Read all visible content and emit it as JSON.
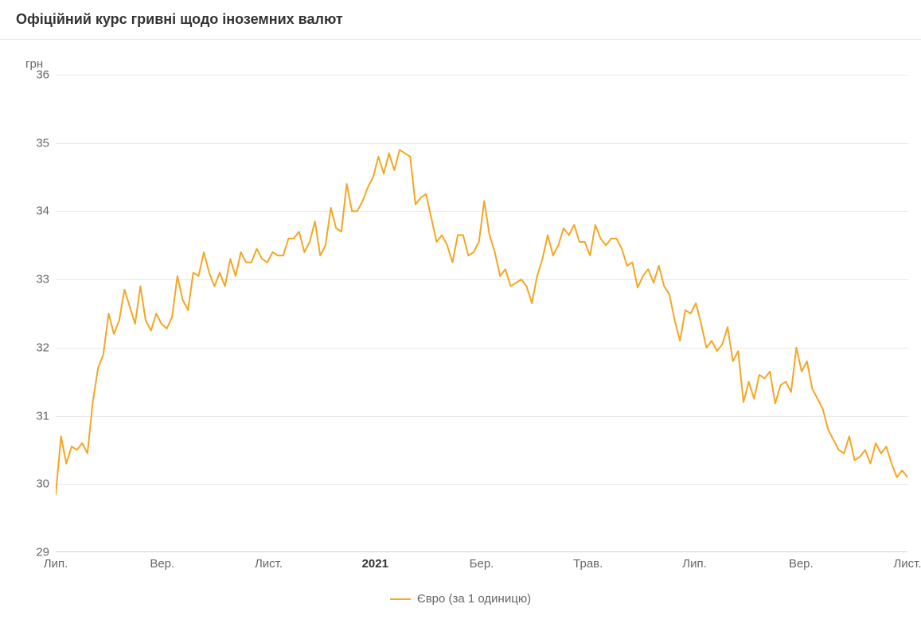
{
  "title": "Офіційний курс гривні щодо іноземних валют",
  "chart": {
    "type": "line",
    "y_unit": "грн",
    "ylim": [
      29,
      36
    ],
    "ytick_step": 1,
    "yticks_labels": [
      "29",
      "30",
      "31",
      "32",
      "33",
      "34",
      "35",
      "36"
    ],
    "xticks": [
      {
        "pos": 0.0,
        "label": "Лип.",
        "bold": false
      },
      {
        "pos": 0.125,
        "label": "Вер.",
        "bold": false
      },
      {
        "pos": 0.25,
        "label": "Лист.",
        "bold": false
      },
      {
        "pos": 0.375,
        "label": "2021",
        "bold": true
      },
      {
        "pos": 0.5,
        "label": "Бер.",
        "bold": false
      },
      {
        "pos": 0.625,
        "label": "Трав.",
        "bold": false
      },
      {
        "pos": 0.75,
        "label": "Лип.",
        "bold": false
      },
      {
        "pos": 0.875,
        "label": "Вер.",
        "bold": false
      },
      {
        "pos": 1.0,
        "label": "Лист.",
        "bold": false
      }
    ],
    "legend_label": "Євро (за 1 одиницю)",
    "line_color": "#f5a623",
    "line_width": 2,
    "background_color": "#ffffff",
    "grid_color": "#e8e8e8",
    "axis_text_color": "#666666",
    "title_color": "#333333",
    "title_fontsize": 18,
    "label_fontsize": 15,
    "values": [
      29.85,
      30.7,
      30.3,
      30.55,
      30.5,
      30.6,
      30.45,
      31.2,
      31.7,
      31.9,
      32.5,
      32.2,
      32.4,
      32.85,
      32.6,
      32.35,
      32.9,
      32.4,
      32.25,
      32.5,
      32.35,
      32.28,
      32.45,
      33.05,
      32.7,
      32.55,
      33.1,
      33.05,
      33.4,
      33.1,
      32.9,
      33.1,
      32.9,
      33.3,
      33.05,
      33.4,
      33.25,
      33.25,
      33.45,
      33.3,
      33.25,
      33.4,
      33.35,
      33.35,
      33.6,
      33.6,
      33.7,
      33.4,
      33.55,
      33.85,
      33.35,
      33.5,
      34.05,
      33.75,
      33.7,
      34.4,
      34.0,
      34.0,
      34.15,
      34.35,
      34.5,
      34.8,
      34.55,
      34.85,
      34.6,
      34.9,
      34.85,
      34.8,
      34.1,
      34.2,
      34.25,
      33.9,
      33.55,
      33.65,
      33.5,
      33.25,
      33.65,
      33.65,
      33.35,
      33.4,
      33.55,
      34.15,
      33.65,
      33.4,
      33.05,
      33.15,
      32.9,
      32.95,
      33.0,
      32.9,
      32.65,
      33.05,
      33.3,
      33.65,
      33.35,
      33.5,
      33.75,
      33.65,
      33.8,
      33.55,
      33.55,
      33.35,
      33.8,
      33.6,
      33.5,
      33.6,
      33.6,
      33.45,
      33.2,
      33.25,
      32.88,
      33.05,
      33.15,
      32.95,
      33.2,
      32.9,
      32.78,
      32.4,
      32.1,
      32.55,
      32.5,
      32.65,
      32.35,
      32.0,
      32.1,
      31.95,
      32.05,
      32.3,
      31.8,
      31.95,
      31.2,
      31.5,
      31.25,
      31.6,
      31.55,
      31.65,
      31.18,
      31.45,
      31.5,
      31.35,
      32.0,
      31.65,
      31.8,
      31.4,
      31.25,
      31.1,
      30.8,
      30.65,
      30.5,
      30.45,
      30.7,
      30.35,
      30.4,
      30.5,
      30.3,
      30.6,
      30.45,
      30.55,
      30.3,
      30.1,
      30.2,
      30.1
    ]
  }
}
